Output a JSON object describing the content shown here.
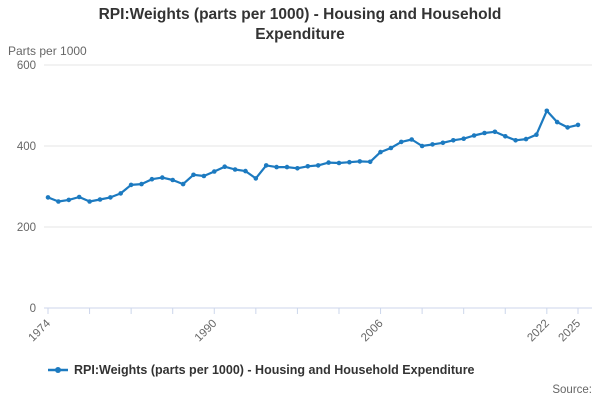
{
  "header": {
    "title": "RPI:Weights (parts per 1000) - Housing and Household Expenditure",
    "unit_label": "Parts per 1000"
  },
  "legend": {
    "label": "RPI:Weights (parts per 1000) - Housing and Household Expenditure",
    "marker": "line-with-dot-icon"
  },
  "footer": {
    "source_label": "Source:"
  },
  "colors": {
    "series_line": "#1c7ac0",
    "gridline": "#e6e6e6",
    "axis_line": "#ccd6eb",
    "tick_label": "#666666",
    "title_text": "#333333"
  },
  "chart_data": {
    "type": "line",
    "title": "RPI:Weights (parts per 1000) - Housing and Household Expenditure",
    "xlabel": "",
    "ylabel": "Parts per 1000",
    "ylim": [
      0,
      600
    ],
    "yticks": [
      0,
      200,
      400,
      600
    ],
    "xlim": [
      1974,
      2025
    ],
    "xticks_minor": [
      1974,
      1978,
      1982,
      1986,
      1990,
      1994,
      1998,
      2002,
      2006,
      2010,
      2014,
      2018,
      2022,
      2025
    ],
    "xticks_labeled": [
      1974,
      1990,
      2006,
      2022,
      2025
    ],
    "grid": true,
    "legend_position": "bottom-left",
    "series": [
      {
        "name": "RPI:Weights (parts per 1000) - Housing and Household Expenditure",
        "x": [
          1974,
          1975,
          1976,
          1977,
          1978,
          1979,
          1980,
          1981,
          1982,
          1983,
          1984,
          1985,
          1986,
          1987,
          1988,
          1989,
          1990,
          1991,
          1992,
          1993,
          1994,
          1995,
          1996,
          1997,
          1998,
          1999,
          2000,
          2001,
          2002,
          2003,
          2004,
          2005,
          2006,
          2007,
          2008,
          2009,
          2010,
          2011,
          2012,
          2013,
          2014,
          2015,
          2016,
          2017,
          2018,
          2019,
          2020,
          2021,
          2022,
          2023,
          2024,
          2025
        ],
        "values": [
          273,
          263,
          267,
          274,
          263,
          268,
          273,
          283,
          304,
          306,
          318,
          322,
          316,
          306,
          329,
          326,
          337,
          349,
          342,
          338,
          320,
          352,
          348,
          348,
          345,
          350,
          352,
          359,
          358,
          360,
          362,
          361,
          385,
          395,
          410,
          416,
          400,
          404,
          408,
          414,
          418,
          426,
          432,
          435,
          424,
          414,
          417,
          428,
          487,
          459,
          446,
          452
        ]
      }
    ]
  }
}
